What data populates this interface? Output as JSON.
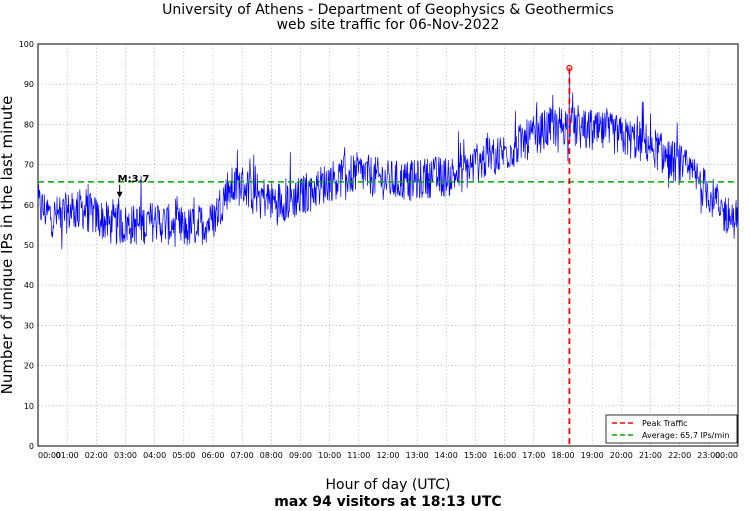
{
  "chart_data": {
    "type": "line",
    "title": "University of Athens - Department of Geophysics & Geothermics",
    "subtitle": "web site traffic for 06-Nov-2022",
    "xlabel": "Hour of day (UTC)",
    "ylabel": "Number of unique IPs in the last minute",
    "summary": "max 94 visitors at 18:13 UTC",
    "ylim": [
      0,
      100
    ],
    "xlim": [
      0,
      24
    ],
    "y_ticks": [
      "0",
      "10",
      "20",
      "30",
      "40",
      "50",
      "60",
      "70",
      "80",
      "90",
      "100"
    ],
    "x_ticks": [
      "00:00",
      "01:00",
      "02:00",
      "03:00",
      "04:00",
      "05:00",
      "06:00",
      "07:00",
      "08:00",
      "09:00",
      "10:00",
      "11:00",
      "12:00",
      "13:00",
      "14:00",
      "15:00",
      "16:00",
      "17:00",
      "18:00",
      "19:00",
      "20:00",
      "21:00",
      "22:00",
      "23:00",
      "00:00"
    ],
    "grid": true,
    "legend_position": "bottom-right",
    "series": [
      {
        "name": "",
        "color": "#0000ff",
        "x": [
          0,
          0.5,
          1,
          1.5,
          2,
          2.5,
          3,
          3.5,
          4,
          4.5,
          5,
          5.5,
          6,
          6.5,
          7,
          7.5,
          8,
          8.5,
          9,
          9.5,
          10,
          10.5,
          11,
          11.5,
          12,
          12.5,
          13,
          13.5,
          14,
          14.5,
          15,
          15.5,
          16,
          16.5,
          17,
          17.5,
          18,
          18.5,
          19,
          19.5,
          20,
          20.5,
          21,
          21.5,
          22,
          22.5,
          23,
          23.5,
          24
        ],
        "y": [
          60,
          57,
          58,
          59,
          57,
          55,
          55,
          55,
          56,
          55,
          54,
          55,
          56,
          64,
          65,
          63,
          61,
          61,
          62,
          64,
          66,
          67,
          68,
          67,
          66,
          66,
          66,
          67,
          67,
          68,
          70,
          72,
          73,
          75,
          77,
          79,
          80,
          79,
          78,
          78,
          77,
          76,
          75,
          72,
          70,
          67,
          63,
          58,
          56
        ],
        "noise": 4
      },
      {
        "name": "Peak Traffic",
        "color": "#ff0000",
        "style": "dashed",
        "x": 18.22,
        "peak_value": 94
      },
      {
        "name": "Average: 65.7 IPs/min",
        "color": "#00aa00",
        "style": "dashed",
        "y": 65.7
      }
    ],
    "annotations": [
      {
        "text": "M:3.7",
        "x": 2.8,
        "y": 62
      }
    ]
  }
}
